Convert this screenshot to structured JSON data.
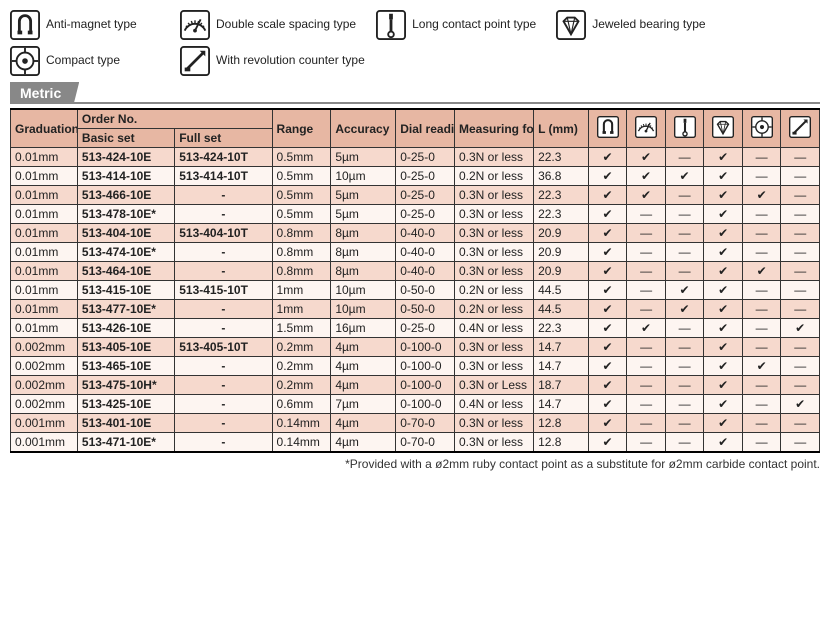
{
  "legend": [
    {
      "key": "antimagnet",
      "label": "Anti-magnet type"
    },
    {
      "key": "doublescale",
      "label": "Double scale spacing type"
    },
    {
      "key": "longcontact",
      "label": "Long contact point type"
    },
    {
      "key": "jeweled",
      "label": "Jeweled bearing type"
    },
    {
      "key": "compact",
      "label": "Compact type"
    },
    {
      "key": "revcounter",
      "label": "With revolution counter type"
    }
  ],
  "section_label": "Metric",
  "headers": {
    "graduation": "Graduation",
    "order_no": "Order No.",
    "basic_set": "Basic set",
    "full_set": "Full set",
    "range": "Range",
    "accuracy": "Accuracy",
    "dial_reading": "Dial reading",
    "measuring_force": "Measuring force",
    "l_mm": "L (mm)"
  },
  "icon_order": [
    "antimagnet",
    "doublescale",
    "longcontact",
    "jeweled",
    "compact",
    "revcounter"
  ],
  "check": "✔",
  "dash": "—",
  "rows": [
    {
      "grad": "0.01mm",
      "basic": "513-424-10E",
      "full": "513-424-10T",
      "range": "0.5mm",
      "acc": "5µm",
      "dial": "0-25-0",
      "force": "0.3N or less",
      "l": "22.3",
      "f": [
        1,
        1,
        0,
        1,
        0,
        0
      ]
    },
    {
      "grad": "0.01mm",
      "basic": "513-414-10E",
      "full": "513-414-10T",
      "range": "0.5mm",
      "acc": "10µm",
      "dial": "0-25-0",
      "force": "0.2N or less",
      "l": "36.8",
      "f": [
        1,
        1,
        1,
        1,
        0,
        0
      ]
    },
    {
      "grad": "0.01mm",
      "basic": "513-466-10E",
      "full": "-",
      "range": "0.5mm",
      "acc": "5µm",
      "dial": "0-25-0",
      "force": "0.3N or less",
      "l": "22.3",
      "f": [
        1,
        1,
        0,
        1,
        1,
        0
      ]
    },
    {
      "grad": "0.01mm",
      "basic": "513-478-10E*",
      "full": "-",
      "range": "0.5mm",
      "acc": "5µm",
      "dial": "0-25-0",
      "force": "0.3N or less",
      "l": "22.3",
      "f": [
        1,
        0,
        0,
        1,
        0,
        0
      ]
    },
    {
      "grad": "0.01mm",
      "basic": "513-404-10E",
      "full": "513-404-10T",
      "range": "0.8mm",
      "acc": "8µm",
      "dial": "0-40-0",
      "force": "0.3N or less",
      "l": "20.9",
      "f": [
        1,
        0,
        0,
        1,
        0,
        0
      ]
    },
    {
      "grad": "0.01mm",
      "basic": "513-474-10E*",
      "full": "-",
      "range": "0.8mm",
      "acc": "8µm",
      "dial": "0-40-0",
      "force": "0.3N or less",
      "l": "20.9",
      "f": [
        1,
        0,
        0,
        1,
        0,
        0
      ]
    },
    {
      "grad": "0.01mm",
      "basic": "513-464-10E",
      "full": "-",
      "range": "0.8mm",
      "acc": "8µm",
      "dial": "0-40-0",
      "force": "0.3N or less",
      "l": "20.9",
      "f": [
        1,
        0,
        0,
        1,
        1,
        0
      ]
    },
    {
      "grad": "0.01mm",
      "basic": "513-415-10E",
      "full": "513-415-10T",
      "range": "1mm",
      "acc": "10µm",
      "dial": "0-50-0",
      "force": "0.2N or less",
      "l": "44.5",
      "f": [
        1,
        0,
        1,
        1,
        0,
        0
      ]
    },
    {
      "grad": "0.01mm",
      "basic": "513-477-10E*",
      "full": "-",
      "range": "1mm",
      "acc": "10µm",
      "dial": "0-50-0",
      "force": "0.2N or less",
      "l": "44.5",
      "f": [
        1,
        0,
        1,
        1,
        0,
        0
      ]
    },
    {
      "grad": "0.01mm",
      "basic": "513-426-10E",
      "full": "-",
      "range": "1.5mm",
      "acc": "16µm",
      "dial": "0-25-0",
      "force": "0.4N or less",
      "l": "22.3",
      "f": [
        1,
        1,
        0,
        1,
        0,
        1
      ]
    },
    {
      "grad": "0.002mm",
      "basic": "513-405-10E",
      "full": "513-405-10T",
      "range": "0.2mm",
      "acc": "4µm",
      "dial": "0-100-0",
      "force": "0.3N or less",
      "l": "14.7",
      "f": [
        1,
        0,
        0,
        1,
        0,
        0
      ]
    },
    {
      "grad": "0.002mm",
      "basic": "513-465-10E",
      "full": "-",
      "range": "0.2mm",
      "acc": "4µm",
      "dial": "0-100-0",
      "force": "0.3N or less",
      "l": "14.7",
      "f": [
        1,
        0,
        0,
        1,
        1,
        0
      ]
    },
    {
      "grad": "0.002mm",
      "basic": "513-475-10H*",
      "full": "-",
      "range": "0.2mm",
      "acc": "4µm",
      "dial": "0-100-0",
      "force": "0.3N or Less",
      "l": "18.7",
      "f": [
        1,
        0,
        0,
        1,
        0,
        0
      ]
    },
    {
      "grad": "0.002mm",
      "basic": "513-425-10E",
      "full": "-",
      "range": "0.6mm",
      "acc": "7µm",
      "dial": "0-100-0",
      "force": "0.4N or less",
      "l": "14.7",
      "f": [
        1,
        0,
        0,
        1,
        0,
        1
      ]
    },
    {
      "grad": "0.001mm",
      "basic": "513-401-10E",
      "full": "-",
      "range": "0.14mm",
      "acc": "4µm",
      "dial": "0-70-0",
      "force": "0.3N or less",
      "l": "12.8",
      "f": [
        1,
        0,
        0,
        1,
        0,
        0
      ]
    },
    {
      "grad": "0.001mm",
      "basic": "513-471-10E*",
      "full": "-",
      "range": "0.14mm",
      "acc": "4µm",
      "dial": "0-70-0",
      "force": "0.3N or less",
      "l": "12.8",
      "f": [
        1,
        0,
        0,
        1,
        0,
        0
      ]
    }
  ],
  "footnote": "*Provided with a ø2mm ruby contact point as a substitute for ø2mm carbide contact point.",
  "colors": {
    "header_bg": "#e7b7a3",
    "row_odd": "#f6d9cd",
    "row_even": "#fdf5f1",
    "section_bg": "#888888"
  }
}
